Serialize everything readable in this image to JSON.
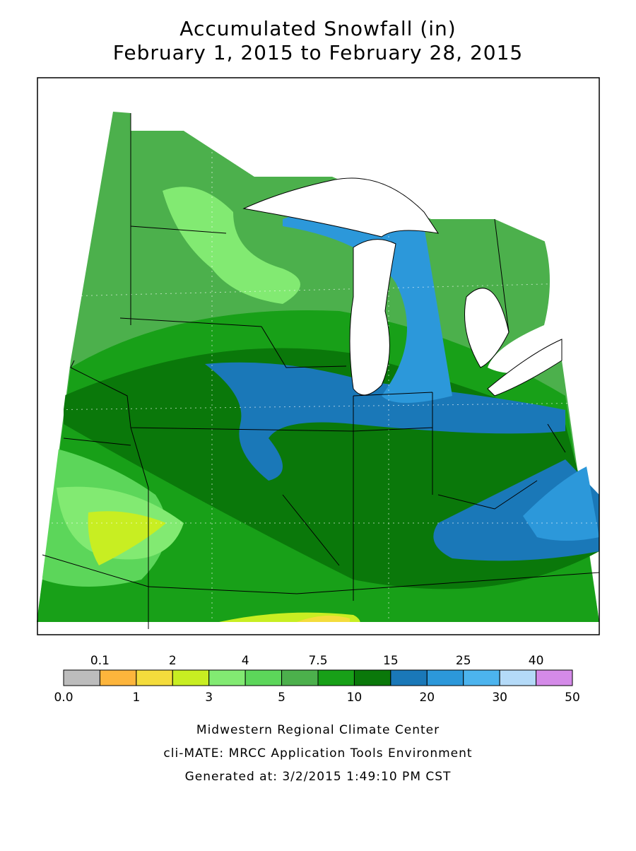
{
  "title": "Accumulated Snowfall (in)",
  "subtitle": "February 1, 2015 to February 28, 2015",
  "legend": {
    "colors": [
      "#bcbcbc",
      "#fdb53c",
      "#f4dc3c",
      "#c8ee22",
      "#82ea72",
      "#5cd65a",
      "#4cb04c",
      "#18a018",
      "#0a780a",
      "#1a78b8",
      "#2c98da",
      "#4cb4ee",
      "#b4daf8",
      "#d48ae8"
    ],
    "labels": [
      "0.0",
      "0.1",
      "1",
      "2",
      "3",
      "4",
      "5",
      "7.5",
      "10",
      "15",
      "20",
      "25",
      "30",
      "40",
      "50"
    ]
  },
  "footer": [
    "Midwestern Regional Climate Center",
    "cli-MATE: MRCC Application Tools Environment",
    "Generated at: 3/2/2015 1:49:10 PM CST"
  ]
}
